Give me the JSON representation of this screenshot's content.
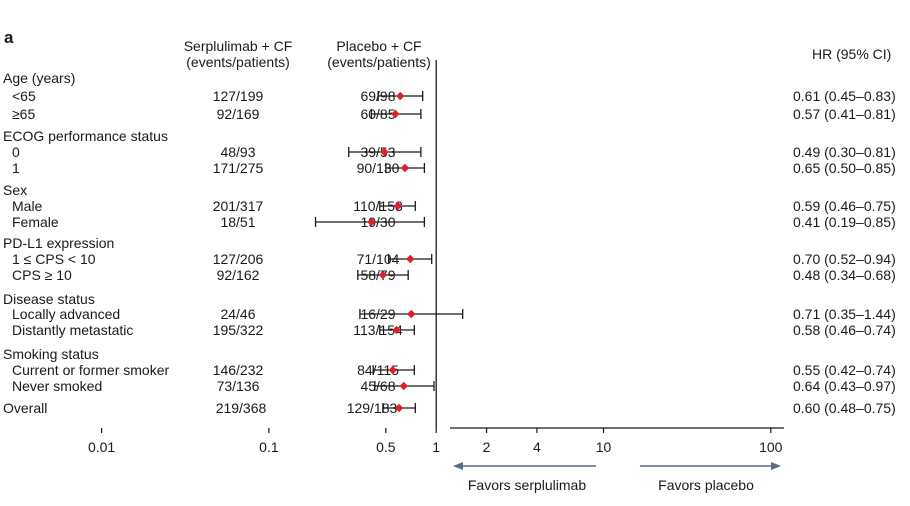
{
  "panel_letter": "a",
  "columns": {
    "serp": [
      "Serplulimab + CF",
      "(events/patients)"
    ],
    "placebo": [
      "Placebo + CF",
      "(events/patients)"
    ],
    "hr": "HR (95% CI)"
  },
  "chart_data": {
    "type": "forest",
    "x_scale": "log",
    "xlim": [
      0.005,
      150
    ],
    "reference_line": 1,
    "x_ticks": [
      {
        "value": 0.01,
        "label": "0.01"
      },
      {
        "value": 0.1,
        "label": "0.1"
      },
      {
        "value": 0.5,
        "label": "0.5"
      },
      {
        "value": 1,
        "label": "1"
      },
      {
        "value": 2,
        "label": "2"
      },
      {
        "value": 4,
        "label": "4"
      },
      {
        "value": 10,
        "label": "10"
      },
      {
        "value": 100,
        "label": "100"
      }
    ],
    "favors_left": "Favors serplulimab",
    "favors_right": "Favors placebo",
    "rows": [
      {
        "kind": "header",
        "label": "Age (years)"
      },
      {
        "kind": "row",
        "label": "<65",
        "serp": "127/199",
        "placebo": "69/98",
        "hr_text": "0.61 (0.45–0.83)",
        "hr": 0.61,
        "lo": 0.45,
        "hi": 0.83
      },
      {
        "kind": "row",
        "label": "≥65",
        "serp": "92/169",
        "placebo": "60/85",
        "hr_text": "0.57 (0.41–0.81)",
        "hr": 0.57,
        "lo": 0.41,
        "hi": 0.81
      },
      {
        "kind": "header",
        "label": "ECOG performance status"
      },
      {
        "kind": "row",
        "label": "0",
        "serp": "48/93",
        "placebo": "39/53",
        "hr_text": "0.49 (0.30–0.81)",
        "hr": 0.49,
        "lo": 0.3,
        "hi": 0.81
      },
      {
        "kind": "row",
        "label": "1",
        "serp": "171/275",
        "placebo": "90/130",
        "hr_text": "0.65 (0.50–0.85)",
        "hr": 0.65,
        "lo": 0.5,
        "hi": 0.85
      },
      {
        "kind": "header",
        "label": "Sex"
      },
      {
        "kind": "row",
        "label": "Male",
        "serp": "201/317",
        "placebo": "110/153",
        "hr_text": "0.59 (0.46–0.75)",
        "hr": 0.59,
        "lo": 0.46,
        "hi": 0.75
      },
      {
        "kind": "row",
        "label": "Female",
        "serp": "18/51",
        "placebo": "19/30",
        "hr_text": "0.41 (0.19–0.85)",
        "hr": 0.41,
        "lo": 0.19,
        "hi": 0.85
      },
      {
        "kind": "header",
        "label": "PD-L1 expression"
      },
      {
        "kind": "row",
        "label": "1 ≤ CPS < 10",
        "serp": "127/206",
        "placebo": "71/104",
        "hr_text": "0.70 (0.52–0.94)",
        "hr": 0.7,
        "lo": 0.52,
        "hi": 0.94
      },
      {
        "kind": "row",
        "label": "CPS ≥ 10",
        "serp": "92/162",
        "placebo": "58/79",
        "hr_text": "0.48 (0.34–0.68)",
        "hr": 0.48,
        "lo": 0.34,
        "hi": 0.68
      },
      {
        "kind": "header",
        "label": "Disease status"
      },
      {
        "kind": "row",
        "label": "Locally advanced",
        "serp": "24/46",
        "placebo": "16/29",
        "hr_text": "0.71 (0.35–1.44)",
        "hr": 0.71,
        "lo": 0.35,
        "hi": 1.44
      },
      {
        "kind": "row",
        "label": "Distantly metastatic",
        "serp": "195/322",
        "placebo": "113/154",
        "hr_text": "0.58 (0.46–0.74)",
        "hr": 0.58,
        "lo": 0.46,
        "hi": 0.74
      },
      {
        "kind": "header",
        "label": "Smoking status"
      },
      {
        "kind": "row",
        "label": "Current or former smoker",
        "serp": "146/232",
        "placebo": "84/115",
        "hr_text": "0.55 (0.42–0.74)",
        "hr": 0.55,
        "lo": 0.42,
        "hi": 0.74
      },
      {
        "kind": "row",
        "label": "Never smoked",
        "serp": "73/136",
        "placebo": "45/68",
        "hr_text": "0.64 (0.43–0.97)",
        "hr": 0.64,
        "lo": 0.43,
        "hi": 0.97
      },
      {
        "kind": "overall",
        "label": "Overall",
        "serp": "219/368",
        "placebo": "129/183",
        "hr_text": "0.60 (0.48–0.75)",
        "hr": 0.6,
        "lo": 0.48,
        "hi": 0.75
      }
    ]
  },
  "colors": {
    "point": "#e0202a",
    "ci_line": "#1a1a1a",
    "axis": "#1a1a1a",
    "arrow": "#5a6a85"
  }
}
